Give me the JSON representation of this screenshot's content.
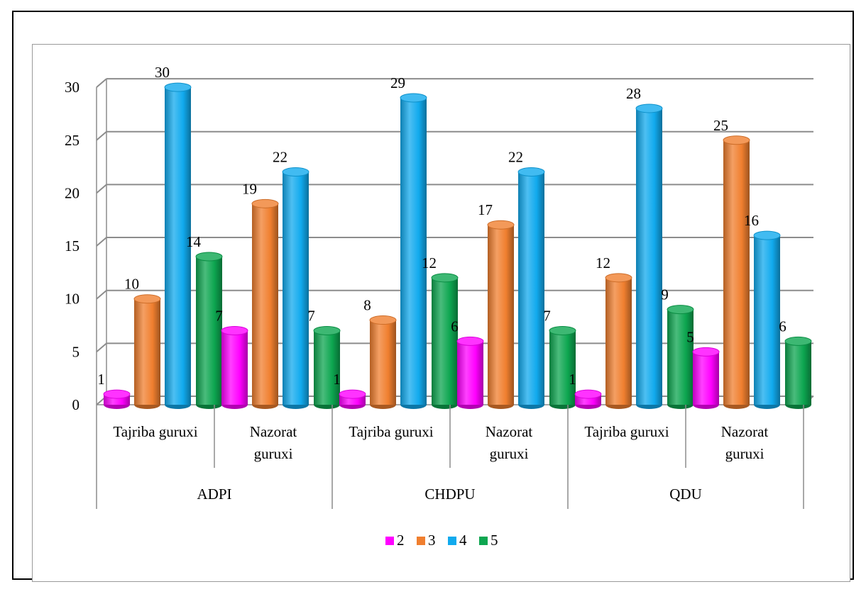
{
  "chart_data": {
    "type": "bar",
    "title": "",
    "xlabel": "",
    "ylabel": "",
    "ylim": [
      0,
      30
    ],
    "yticks": [
      0,
      5,
      10,
      15,
      20,
      25,
      30
    ],
    "grid": true,
    "legend_position": "bottom",
    "bar_style": "3d-cylinder",
    "groups": [
      {
        "label": "ADPI",
        "categories": [
          "Tajriba guruxi",
          "Nazorat guruxi"
        ]
      },
      {
        "label": "CHDPU",
        "categories": [
          "Tajriba guruxi",
          "Nazorat guruxi"
        ]
      },
      {
        "label": "QDU",
        "categories": [
          "Tajriba guruxi",
          "Nazorat guruxi"
        ]
      }
    ],
    "categories": [
      "Tajriba guruxi",
      "Nazorat guruxi",
      "Tajriba guruxi",
      "Nazorat guruxi",
      "Tajriba guruxi",
      "Nazorat guruxi"
    ],
    "series": [
      {
        "name": "2",
        "color": "#ff00ff",
        "values": [
          1,
          7,
          1,
          6,
          1,
          5
        ]
      },
      {
        "name": "3",
        "color": "#f07f2f",
        "values": [
          10,
          19,
          8,
          17,
          12,
          25
        ]
      },
      {
        "name": "4",
        "color": "#11aaee",
        "values": [
          30,
          22,
          29,
          22,
          28,
          16
        ]
      },
      {
        "name": "5",
        "color": "#0da650",
        "values": [
          14,
          7,
          12,
          7,
          9,
          6
        ]
      }
    ],
    "data_labels": true
  }
}
